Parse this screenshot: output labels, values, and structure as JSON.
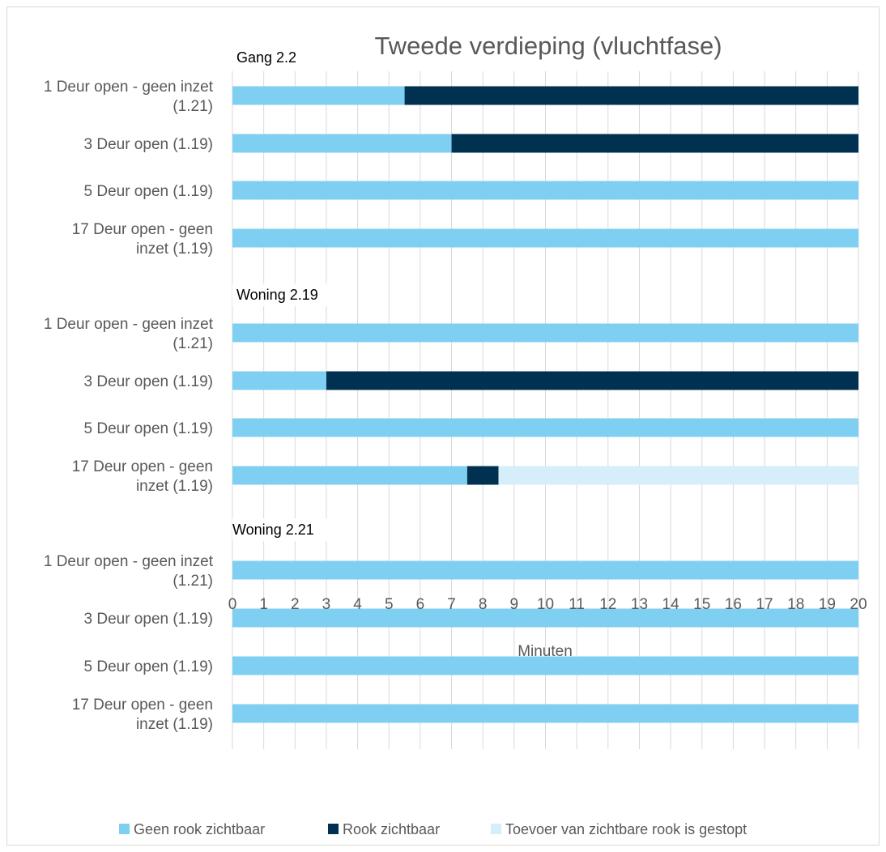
{
  "chart_data": {
    "type": "bar",
    "orientation": "horizontal",
    "stacked": true,
    "title": "Tweede verdieping (vluchtfase)",
    "xlabel": "Minuten",
    "xlim": [
      0,
      20
    ],
    "xticks": [
      0,
      1,
      2,
      3,
      4,
      5,
      6,
      7,
      8,
      9,
      10,
      11,
      12,
      13,
      14,
      15,
      16,
      17,
      18,
      19,
      20
    ],
    "grid": true,
    "legend_position": "bottom",
    "series": [
      {
        "name": "Geen rook zichtbaar",
        "color": "#7FCFF2"
      },
      {
        "name": "Rook zichtbaar",
        "color": "#003150"
      },
      {
        "name": "Toevoer van zichtbare rook is gestopt",
        "color": "#D6EEFA"
      }
    ],
    "groups": [
      {
        "label": "Gang 2.2",
        "rows": [
          {
            "label": [
              "1 Deur open - geen inzet",
              "(1.21)"
            ],
            "segments": [
              {
                "series": 0,
                "start": 0,
                "end": 5.5
              },
              {
                "series": 1,
                "start": 5.5,
                "end": 20
              }
            ]
          },
          {
            "label": [
              "3 Deur open (1.19)"
            ],
            "segments": [
              {
                "series": 0,
                "start": 0,
                "end": 7
              },
              {
                "series": 1,
                "start": 7,
                "end": 20
              }
            ]
          },
          {
            "label": [
              "5 Deur open (1.19)"
            ],
            "segments": [
              {
                "series": 0,
                "start": 0,
                "end": 20
              }
            ]
          },
          {
            "label": [
              "17 Deur open - geen",
              "inzet (1.19)"
            ],
            "segments": [
              {
                "series": 0,
                "start": 0,
                "end": 20
              }
            ]
          }
        ]
      },
      {
        "label": "Woning 2.19",
        "rows": [
          {
            "label": [
              "1 Deur open - geen inzet",
              "(1.21)"
            ],
            "segments": [
              {
                "series": 0,
                "start": 0,
                "end": 20
              }
            ]
          },
          {
            "label": [
              "3 Deur open (1.19)"
            ],
            "segments": [
              {
                "series": 0,
                "start": 0,
                "end": 3
              },
              {
                "series": 1,
                "start": 3,
                "end": 20
              }
            ]
          },
          {
            "label": [
              "5 Deur open (1.19)"
            ],
            "segments": [
              {
                "series": 0,
                "start": 0,
                "end": 20
              }
            ]
          },
          {
            "label": [
              "17 Deur open - geen",
              "inzet (1.19)"
            ],
            "segments": [
              {
                "series": 0,
                "start": 0,
                "end": 7.5
              },
              {
                "series": 1,
                "start": 7.5,
                "end": 8.5
              },
              {
                "series": 2,
                "start": 8.5,
                "end": 20
              }
            ]
          }
        ]
      },
      {
        "label": "Woning 2.21",
        "rows": [
          {
            "label": [
              "1 Deur open - geen inzet",
              "(1.21)"
            ],
            "segments": [
              {
                "series": 0,
                "start": 0,
                "end": 20
              }
            ]
          },
          {
            "label": [
              "3 Deur open (1.19)"
            ],
            "segments": [
              {
                "series": 0,
                "start": 0,
                "end": 20
              }
            ]
          },
          {
            "label": [
              "5 Deur open (1.19)"
            ],
            "segments": [
              {
                "series": 0,
                "start": 0,
                "end": 20
              }
            ]
          },
          {
            "label": [
              "17 Deur open - geen",
              "inzet (1.19)"
            ],
            "segments": [
              {
                "series": 0,
                "start": 0,
                "end": 20
              }
            ]
          }
        ]
      }
    ]
  }
}
